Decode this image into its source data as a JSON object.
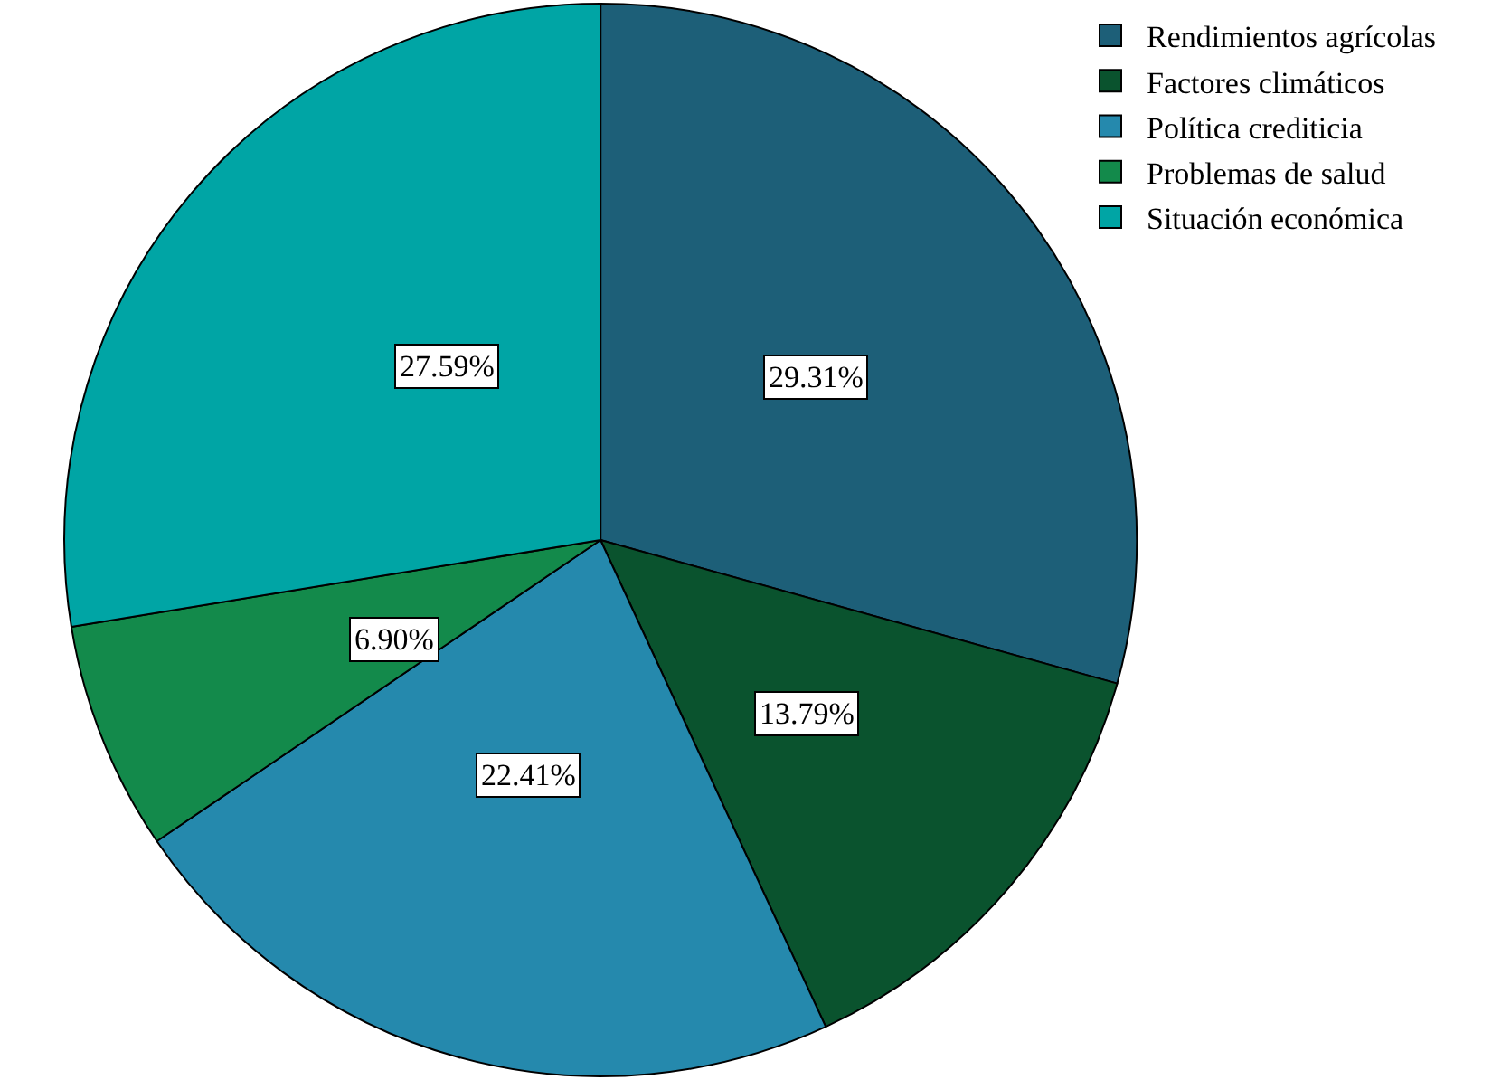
{
  "chart_data": {
    "type": "pie",
    "categories": [
      "Rendimientos agrícolas",
      "Factores climáticos",
      "Política crediticia",
      "Problemas de salud",
      "Situación económica"
    ],
    "values": [
      29.31,
      13.79,
      22.41,
      6.9,
      27.59
    ],
    "value_labels": [
      "29.31%",
      "13.79%",
      "22.41%",
      "6.90%",
      "27.59%"
    ],
    "colors": [
      "#1d5f78",
      "#0a532e",
      "#2589ad",
      "#138a4b",
      "#00a5a5"
    ],
    "legend": "top right"
  }
}
